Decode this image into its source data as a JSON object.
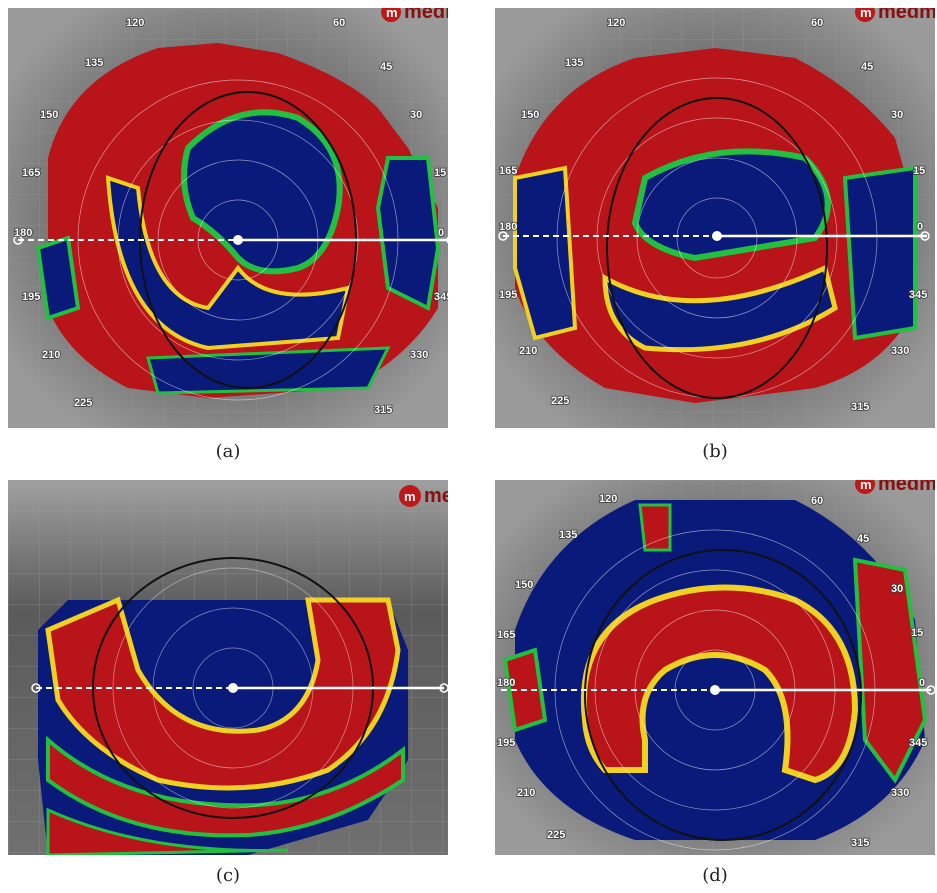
{
  "brand": {
    "mark": "m",
    "text": "medm"
  },
  "panels": [
    {
      "id": "a",
      "caption": "(a)",
      "degree_labels": [
        "120",
        "60",
        "135",
        "45",
        "150",
        "30",
        "165",
        "15",
        "180",
        "0",
        "195",
        "345",
        "210",
        "330",
        "225",
        "315"
      ]
    },
    {
      "id": "b",
      "caption": "(b)",
      "degree_labels": [
        "120",
        "60",
        "135",
        "45",
        "150",
        "30",
        "165",
        "15",
        "180",
        "0",
        "195",
        "345",
        "210",
        "330",
        "225",
        "315"
      ]
    },
    {
      "id": "c",
      "caption": "(c)",
      "degree_labels": []
    },
    {
      "id": "d",
      "caption": "(d)",
      "degree_labels": [
        "120",
        "60",
        "135",
        "45",
        "150",
        "30",
        "165",
        "15",
        "180",
        "0",
        "195",
        "345",
        "210",
        "330",
        "225",
        "315"
      ]
    }
  ],
  "colors": {
    "map_red": "#b8141a",
    "map_blue": "#0a1a7a",
    "map_green": "#22c040",
    "map_yellow": "#f0d020",
    "skin_gray": "#707070",
    "axis_white": "#ffffff",
    "pupil_ring": "#111111"
  }
}
